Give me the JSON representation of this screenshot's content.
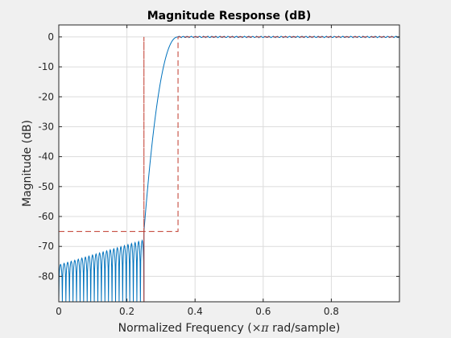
{
  "chart_data": {
    "type": "line",
    "title": "Magnitude Response (dB)",
    "xlabel_prefix": "Normalized Frequency  (",
    "xlabel_pi": "×π",
    "xlabel_suffix": " rad/sample)",
    "ylabel": "Magnitude (dB)",
    "xlim": [
      0,
      1
    ],
    "ylim": [
      -88.5,
      4
    ],
    "grid": true,
    "xticks": [
      0,
      0.2,
      0.4,
      0.6,
      0.8
    ],
    "xtick_labels": [
      "0",
      "0.2",
      "0.4",
      "0.6",
      "0.8"
    ],
    "yticks": [
      0,
      -10,
      -20,
      -30,
      -40,
      -50,
      -60,
      -70,
      -80
    ],
    "ytick_labels": [
      "0",
      "-10",
      "-20",
      "-30",
      "-40",
      "-50",
      "-60",
      "-70",
      "-80"
    ],
    "series": [
      {
        "style": "solid",
        "color": "#0072bd",
        "stopband_edge": 0.25,
        "passband_edge": 0.35,
        "stopband_lobes": 24,
        "lobe_peak_first": -76,
        "lobe_peak_last": -68,
        "passband_level": 0
      },
      {
        "style": "dashed",
        "color": "#c0392b",
        "x": [
          0,
          0.25,
          0.25,
          0.25,
          0.25,
          0.35,
          0.35,
          1
        ],
        "y": [
          -65,
          -65,
          -88.5,
          0,
          -65,
          -65,
          0,
          0
        ]
      }
    ]
  }
}
